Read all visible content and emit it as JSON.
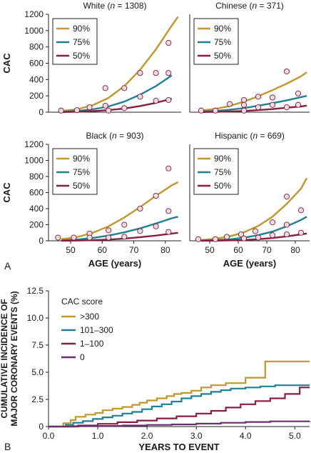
{
  "panel_labels": {
    "a": "A",
    "b": "B"
  },
  "chart_data": [
    {
      "type": "line",
      "title_name": "White",
      "title_n": "1308",
      "xlabel": "",
      "ylabel": "CAC",
      "xlim": [
        43,
        85
      ],
      "ylim": [
        0,
        1200
      ],
      "yticks": [
        0,
        200,
        400,
        600,
        800,
        1000,
        1200
      ],
      "xticks": [],
      "legend_position": "top-left",
      "series": [
        {
          "name": "90%",
          "color": "#c2962b",
          "x": [
            47,
            52,
            57,
            62,
            67,
            72,
            77,
            82,
            84
          ],
          "y": [
            15,
            35,
            85,
            175,
            320,
            520,
            770,
            1060,
            1170
          ]
        },
        {
          "name": "75%",
          "color": "#1f7f95",
          "x": [
            47,
            52,
            57,
            62,
            67,
            72,
            77,
            82
          ],
          "y": [
            5,
            15,
            35,
            70,
            130,
            215,
            320,
            450
          ]
        },
        {
          "name": "50%",
          "color": "#8a1f3c",
          "x": [
            47,
            52,
            57,
            62,
            67,
            72,
            77,
            82
          ],
          "y": [
            2,
            5,
            12,
            25,
            45,
            75,
            115,
            165
          ]
        }
      ],
      "points": {
        "x": [
          47,
          52,
          56,
          61,
          61,
          62,
          67,
          67,
          72,
          72,
          77,
          77,
          81,
          81,
          81
        ],
        "y": [
          20,
          25,
          60,
          295,
          80,
          20,
          295,
          50,
          480,
          190,
          480,
          140,
          850,
          480,
          150
        ]
      }
    },
    {
      "type": "line",
      "title_name": "Chinese",
      "title_n": "371",
      "xlabel": "",
      "ylabel": "",
      "xlim": [
        43,
        85
      ],
      "ylim": [
        0,
        1200
      ],
      "yticks": [],
      "xticks": [],
      "legend_position": "top-left",
      "series": [
        {
          "name": "90%",
          "color": "#c2962b",
          "x": [
            47,
            52,
            57,
            62,
            67,
            72,
            77,
            82,
            84
          ],
          "y": [
            20,
            40,
            75,
            130,
            195,
            270,
            350,
            440,
            490
          ]
        },
        {
          "name": "75%",
          "color": "#1f7f95",
          "x": [
            47,
            52,
            57,
            62,
            67,
            72,
            77,
            82,
            84
          ],
          "y": [
            8,
            15,
            30,
            50,
            80,
            110,
            145,
            185,
            200
          ]
        },
        {
          "name": "50%",
          "color": "#8a1f3c",
          "x": [
            47,
            52,
            57,
            62,
            67,
            72,
            77,
            82,
            84
          ],
          "y": [
            2,
            4,
            8,
            15,
            25,
            38,
            55,
            70,
            80
          ]
        }
      ],
      "points": {
        "x": [
          47,
          52,
          57,
          62,
          62,
          62,
          67,
          67,
          72,
          72,
          77,
          77,
          81,
          81
        ],
        "y": [
          20,
          20,
          100,
          150,
          90,
          20,
          190,
          60,
          180,
          90,
          500,
          60,
          230,
          90
        ]
      }
    },
    {
      "type": "line",
      "title_name": "Black",
      "title_n": "903",
      "xlabel": "",
      "ylabel": "CAC",
      "xlim": [
        43,
        85
      ],
      "ylim": [
        0,
        1200
      ],
      "yticks": [
        0,
        200,
        400,
        600,
        800,
        1000,
        1200
      ],
      "xticks": [],
      "legend_position": "top-left",
      "series": [
        {
          "name": "90%",
          "color": "#c2962b",
          "x": [
            47,
            52,
            57,
            62,
            67,
            72,
            77,
            82,
            84
          ],
          "y": [
            20,
            45,
            100,
            180,
            290,
            420,
            560,
            690,
            730
          ]
        },
        {
          "name": "75%",
          "color": "#1f7f95",
          "x": [
            47,
            52,
            57,
            62,
            67,
            72,
            77,
            82,
            84
          ],
          "y": [
            5,
            15,
            35,
            65,
            105,
            155,
            215,
            280,
            300
          ]
        },
        {
          "name": "50%",
          "color": "#8a1f3c",
          "x": [
            47,
            52,
            57,
            62,
            67,
            72,
            77,
            82,
            84
          ],
          "y": [
            1,
            3,
            8,
            15,
            28,
            45,
            65,
            90,
            100
          ]
        }
      ],
      "points": {
        "x": [
          46,
          51,
          56,
          56,
          62,
          62,
          67,
          67,
          72,
          72,
          77,
          77,
          81,
          81,
          81
        ],
        "y": [
          40,
          40,
          90,
          40,
          130,
          40,
          200,
          50,
          400,
          120,
          560,
          180,
          900,
          370,
          110
        ]
      }
    },
    {
      "type": "line",
      "title_name": "Hispanic",
      "title_n": "669",
      "xlabel": "",
      "ylabel": "",
      "xlim": [
        43,
        85
      ],
      "ylim": [
        0,
        1200
      ],
      "yticks": [],
      "xticks": [],
      "legend_position": "top-left",
      "series": [
        {
          "name": "90%",
          "color": "#c2962b",
          "x": [
            47,
            52,
            57,
            62,
            67,
            72,
            77,
            82,
            84
          ],
          "y": [
            10,
            25,
            55,
            105,
            185,
            300,
            460,
            650,
            780
          ]
        },
        {
          "name": "75%",
          "color": "#1f7f95",
          "x": [
            47,
            52,
            57,
            62,
            67,
            72,
            77,
            82,
            84
          ],
          "y": [
            3,
            8,
            18,
            38,
            70,
            115,
            180,
            260,
            300
          ]
        },
        {
          "name": "50%",
          "color": "#8a1f3c",
          "x": [
            47,
            52,
            57,
            62,
            67,
            72,
            77,
            82,
            84
          ],
          "y": [
            1,
            2,
            5,
            10,
            20,
            35,
            55,
            80,
            90
          ]
        }
      ],
      "points": {
        "x": [
          46,
          52,
          56,
          61,
          62,
          66,
          67,
          72,
          72,
          77,
          77,
          77,
          82,
          82
        ],
        "y": [
          20,
          20,
          50,
          80,
          30,
          120,
          40,
          230,
          70,
          550,
          200,
          80,
          380,
          100
        ]
      }
    },
    {
      "type": "line",
      "title": "",
      "xlabel": "YEARS TO EVENT",
      "ylabel": "CUMULATIVE INCIDENCE OF MAJOR CORONARY EVENTS (%)",
      "xlim": [
        0,
        5.3
      ],
      "ylim": [
        0,
        12.5
      ],
      "xticks": [
        0,
        1,
        2,
        3,
        4,
        5
      ],
      "xtick_labels": [
        "0.0",
        "1.0",
        "2.0",
        "3.0",
        "4.0",
        "5.0"
      ],
      "yticks": [
        0,
        2.5,
        5,
        7.5,
        10,
        12.5
      ],
      "ytick_labels": [
        "0",
        "2.5",
        "5.0",
        "7.5",
        "10.0",
        "12.5"
      ],
      "legend_title": "CAC score",
      "legend_position": "top-left",
      "series": [
        {
          "name": ">300",
          "color": "#c2962b",
          "x": [
            0,
            0.28,
            0.3,
            0.45,
            0.55,
            0.75,
            0.95,
            1.1,
            1.3,
            1.5,
            1.7,
            1.85,
            2.0,
            2.2,
            2.4,
            2.55,
            2.7,
            2.9,
            3.1,
            3.3,
            3.6,
            4.0,
            4.35,
            4.4,
            5.3
          ],
          "y": [
            0,
            0,
            0.3,
            0.6,
            0.9,
            1.1,
            1.25,
            1.5,
            1.65,
            1.8,
            2.0,
            2.2,
            2.4,
            2.6,
            2.8,
            3.0,
            3.1,
            3.3,
            3.6,
            3.8,
            4.0,
            4.5,
            4.5,
            6.0,
            6.0
          ]
        },
        {
          "name": "101–300",
          "color": "#1f7f95",
          "x": [
            0,
            0.35,
            0.5,
            0.7,
            0.9,
            1.1,
            1.3,
            1.5,
            1.7,
            1.9,
            2.1,
            2.3,
            2.5,
            2.7,
            2.9,
            3.1,
            3.3,
            3.5,
            3.7,
            4.0,
            4.3,
            4.6,
            5.3
          ],
          "y": [
            0,
            0.15,
            0.35,
            0.5,
            0.7,
            0.85,
            1.0,
            1.2,
            1.35,
            1.6,
            1.85,
            2.05,
            2.3,
            2.6,
            2.8,
            3.0,
            3.2,
            3.35,
            3.5,
            3.6,
            3.7,
            3.8,
            3.8
          ]
        },
        {
          "name": "1–100",
          "color": "#8a1f3c",
          "x": [
            0,
            0.6,
            1.0,
            1.4,
            1.8,
            2.2,
            2.6,
            3.0,
            3.3,
            3.6,
            3.9,
            4.2,
            4.5,
            4.8,
            5.1,
            5.3
          ],
          "y": [
            0,
            0.1,
            0.25,
            0.4,
            0.55,
            0.75,
            0.95,
            1.2,
            1.45,
            1.75,
            2.05,
            2.35,
            2.6,
            3.0,
            3.6,
            3.6
          ]
        },
        {
          "name": "0",
          "color": "#6a2f6e",
          "x": [
            0,
            0.5,
            1.0,
            1.5,
            2.0,
            2.5,
            3.0,
            3.5,
            4.0,
            4.5,
            5.3
          ],
          "y": [
            0,
            0.03,
            0.06,
            0.1,
            0.15,
            0.2,
            0.27,
            0.35,
            0.42,
            0.48,
            0.5
          ]
        }
      ]
    }
  ],
  "shared_axes_top": {
    "xlabel": "AGE (years)",
    "xticks": [
      50,
      60,
      70,
      80
    ]
  }
}
